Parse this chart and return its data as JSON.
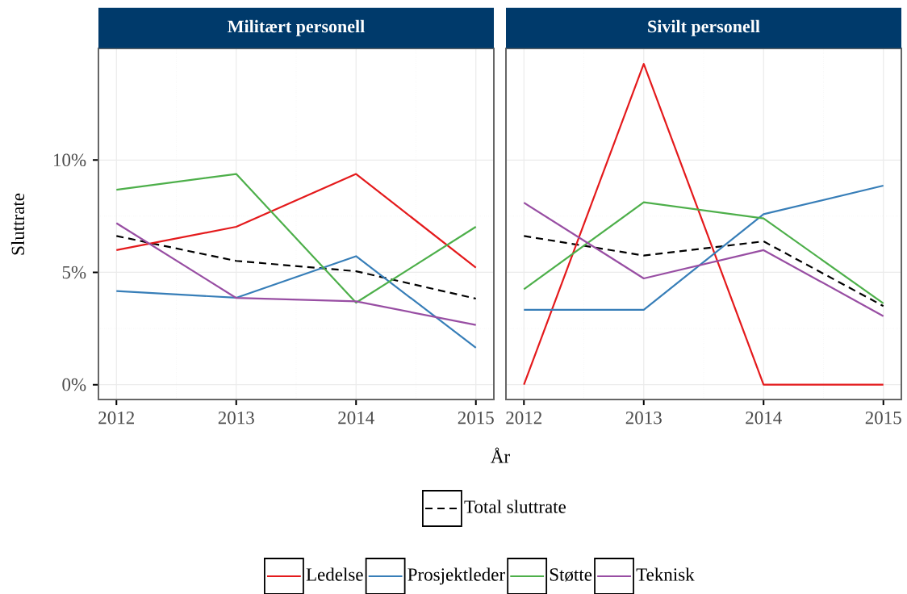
{
  "chart_data": [
    {
      "type": "line",
      "title": "Militært personell",
      "xlabel": "År",
      "ylabel": "Sluttrate",
      "x": [
        2012,
        2013,
        2014,
        2015
      ],
      "xlim": [
        2011.85,
        2015.15
      ],
      "ylim": [
        -0.66,
        14.97
      ],
      "xticks": [
        2012,
        2013,
        2014,
        2015
      ],
      "yticks": [
        {
          "value": 0,
          "label": "0%"
        },
        {
          "value": 5,
          "label": "5%"
        },
        {
          "value": 10,
          "label": "10%"
        }
      ],
      "grid": true,
      "legend": "bottom",
      "marker": "none",
      "series": [
        {
          "name": "Total sluttrate",
          "color": "#000000",
          "line_style": "dashed",
          "values": [
            6.62,
            5.51,
            5.05,
            3.83
          ]
        },
        {
          "name": "Ledelse",
          "color": "#e41a1c",
          "values": [
            5.99,
            7.03,
            9.38,
            5.21
          ]
        },
        {
          "name": "Prosjektleder",
          "color": "#377eb8",
          "values": [
            4.17,
            3.87,
            5.72,
            1.64
          ]
        },
        {
          "name": "Støtte",
          "color": "#4daf4a",
          "values": [
            8.68,
            9.38,
            3.65,
            7.03
          ]
        },
        {
          "name": "Teknisk",
          "color": "#984ea3",
          "values": [
            7.19,
            3.86,
            3.71,
            2.66
          ]
        }
      ]
    },
    {
      "type": "line",
      "title": "Sivilt personell",
      "x": [
        2012,
        2013,
        2014,
        2015
      ],
      "xlim": [
        2011.85,
        2015.15
      ],
      "ylim": [
        -0.66,
        14.97
      ],
      "xticks": [
        2012,
        2013,
        2014,
        2015
      ],
      "yticks": [
        {
          "value": 0,
          "label": null
        },
        {
          "value": 5,
          "label": null
        },
        {
          "value": 10,
          "label": null
        }
      ],
      "tick_labels": "x",
      "grid": true,
      "marker": "none",
      "series": [
        {
          "color": "#000000",
          "line_style": "dashed",
          "values": [
            6.62,
            5.75,
            6.38,
            3.5
          ]
        },
        {
          "color": "#e41a1c",
          "values": [
            0,
            14.28,
            0,
            0
          ]
        },
        {
          "color": "#377eb8",
          "values": [
            3.33,
            3.33,
            7.59,
            8.86
          ]
        },
        {
          "color": "#4daf4a",
          "values": [
            4.25,
            8.12,
            7.4,
            3.62
          ]
        },
        {
          "color": "#984ea3",
          "values": [
            8.1,
            4.73,
            5.99,
            3.05
          ]
        }
      ]
    }
  ]
}
